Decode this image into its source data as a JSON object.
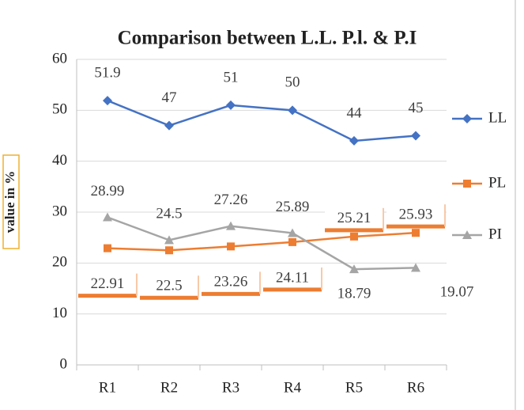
{
  "chart_data": {
    "type": "line",
    "title": "Comparison between L.L. P.l. & P.I",
    "y_label": "value in %",
    "categories": [
      "R1",
      "R2",
      "R3",
      "R4",
      "R5",
      "R6"
    ],
    "series": [
      {
        "name": "LL",
        "color": "#4472c4",
        "marker": "diamond",
        "values": [
          51.9,
          47,
          51,
          50,
          44,
          45
        ]
      },
      {
        "name": "PL",
        "color": "#ed7d31",
        "marker": "square",
        "values": [
          22.91,
          22.5,
          23.26,
          24.11,
          25.21,
          25.93
        ]
      },
      {
        "name": "PI",
        "color": "#a5a5a5",
        "marker": "triangle",
        "values": [
          28.99,
          24.5,
          27.26,
          25.89,
          18.79,
          19.07
        ]
      }
    ],
    "ylim": [
      0,
      60
    ],
    "yticks": [
      0,
      10,
      20,
      30,
      40,
      50,
      60
    ],
    "grid": true,
    "legend": "right"
  }
}
